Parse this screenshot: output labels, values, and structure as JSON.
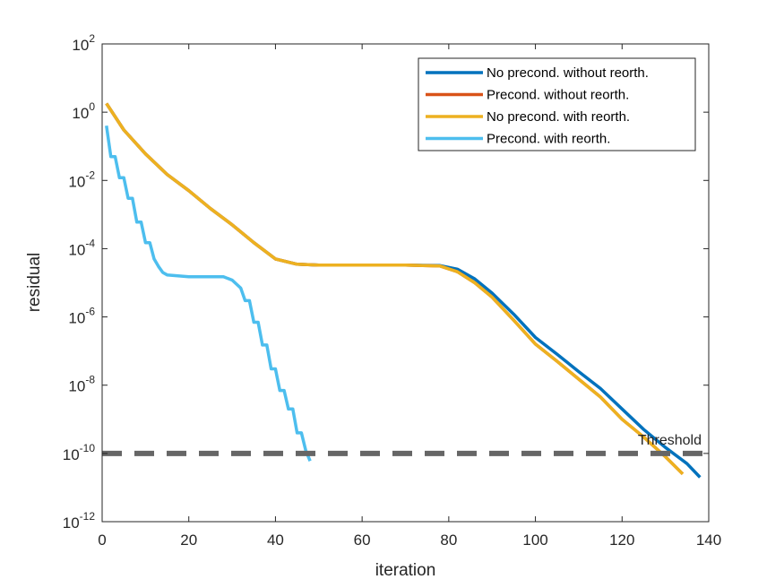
{
  "chart_data": {
    "type": "line",
    "title": "",
    "xlabel": "iteration",
    "ylabel": "residual",
    "xlim": [
      0,
      140
    ],
    "ylim": [
      1e-12,
      100
    ],
    "yscale": "log",
    "grid": false,
    "legend_position": "top-right",
    "xticks": [
      {
        "value": 0,
        "label": "0"
      },
      {
        "value": 20,
        "label": "20"
      },
      {
        "value": 40,
        "label": "40"
      },
      {
        "value": 60,
        "label": "60"
      },
      {
        "value": 80,
        "label": "80"
      },
      {
        "value": 100,
        "label": "100"
      },
      {
        "value": 120,
        "label": "120"
      },
      {
        "value": 140,
        "label": "140"
      }
    ],
    "yticks": [
      {
        "value": 1e-12,
        "base": "10",
        "exp": "-12"
      },
      {
        "value": 1e-10,
        "base": "10",
        "exp": "-10"
      },
      {
        "value": 1e-08,
        "base": "10",
        "exp": "-8"
      },
      {
        "value": 1e-06,
        "base": "10",
        "exp": "-6"
      },
      {
        "value": 0.0001,
        "base": "10",
        "exp": "-4"
      },
      {
        "value": 0.01,
        "base": "10",
        "exp": "-2"
      },
      {
        "value": 1,
        "base": "10",
        "exp": "0"
      },
      {
        "value": 100,
        "base": "10",
        "exp": "2"
      }
    ],
    "series": [
      {
        "name": "No precond. without reorth.",
        "color": "#0072BD",
        "points": [
          [
            1,
            1.8
          ],
          [
            5,
            0.3
          ],
          [
            10,
            0.06
          ],
          [
            15,
            0.015
          ],
          [
            20,
            0.005
          ],
          [
            25,
            0.0015
          ],
          [
            30,
            0.0005
          ],
          [
            35,
            0.00015
          ],
          [
            40,
            5e-05
          ],
          [
            45,
            3.5e-05
          ],
          [
            50,
            3.3e-05
          ],
          [
            60,
            3.3e-05
          ],
          [
            70,
            3.3e-05
          ],
          [
            78,
            3.2e-05
          ],
          [
            82,
            2.5e-05
          ],
          [
            86,
            1.3e-05
          ],
          [
            90,
            5e-06
          ],
          [
            95,
            1.2e-06
          ],
          [
            100,
            2.5e-07
          ],
          [
            105,
            8e-08
          ],
          [
            110,
            2.5e-08
          ],
          [
            115,
            8e-09
          ],
          [
            120,
            2e-09
          ],
          [
            125,
            5e-10
          ],
          [
            130,
            1.5e-10
          ],
          [
            135,
            5e-11
          ],
          [
            138,
            2e-11
          ]
        ]
      },
      {
        "name": "Precond. without reorth.",
        "color": "#D95319",
        "points": [
          [
            1,
            1.8
          ],
          [
            5,
            0.3
          ],
          [
            10,
            0.06
          ],
          [
            15,
            0.015
          ],
          [
            20,
            0.005
          ],
          [
            25,
            0.0015
          ],
          [
            30,
            0.0005
          ],
          [
            35,
            0.00015
          ],
          [
            40,
            5e-05
          ],
          [
            45,
            3.5e-05
          ],
          [
            50,
            3.3e-05
          ],
          [
            60,
            3.3e-05
          ],
          [
            70,
            3.3e-05
          ],
          [
            78,
            3.1e-05
          ],
          [
            82,
            2.1e-05
          ],
          [
            86,
            1e-05
          ],
          [
            90,
            3.8e-06
          ],
          [
            95,
            8e-07
          ],
          [
            100,
            1.6e-07
          ],
          [
            105,
            5e-08
          ],
          [
            110,
            1.5e-08
          ],
          [
            115,
            4.5e-09
          ],
          [
            120,
            1e-09
          ],
          [
            125,
            3e-10
          ],
          [
            130,
            8e-11
          ],
          [
            134,
            2.5e-11
          ]
        ]
      },
      {
        "name": "No precond. with reorth.",
        "color": "#EDB120",
        "points": [
          [
            1,
            1.8
          ],
          [
            5,
            0.3
          ],
          [
            10,
            0.06
          ],
          [
            15,
            0.015
          ],
          [
            20,
            0.005
          ],
          [
            25,
            0.0015
          ],
          [
            30,
            0.0005
          ],
          [
            35,
            0.00015
          ],
          [
            40,
            5e-05
          ],
          [
            45,
            3.5e-05
          ],
          [
            50,
            3.3e-05
          ],
          [
            60,
            3.3e-05
          ],
          [
            70,
            3.3e-05
          ],
          [
            78,
            3.1e-05
          ],
          [
            82,
            2.1e-05
          ],
          [
            86,
            1e-05
          ],
          [
            90,
            3.8e-06
          ],
          [
            95,
            8e-07
          ],
          [
            100,
            1.6e-07
          ],
          [
            105,
            5e-08
          ],
          [
            110,
            1.5e-08
          ],
          [
            115,
            4.5e-09
          ],
          [
            120,
            1e-09
          ],
          [
            125,
            3e-10
          ],
          [
            130,
            8e-11
          ],
          [
            134,
            2.5e-11
          ]
        ]
      },
      {
        "name": "Precond. with reorth.",
        "color": "#4DBEEE",
        "points": [
          [
            1,
            0.4
          ],
          [
            2,
            0.05
          ],
          [
            3,
            0.05
          ],
          [
            4,
            0.012
          ],
          [
            5,
            0.012
          ],
          [
            6,
            0.003
          ],
          [
            7,
            0.003
          ],
          [
            8,
            0.0006
          ],
          [
            9,
            0.0006
          ],
          [
            10,
            0.00015
          ],
          [
            11,
            0.00015
          ],
          [
            12,
            5e-05
          ],
          [
            13,
            3e-05
          ],
          [
            14,
            2e-05
          ],
          [
            15,
            1.7e-05
          ],
          [
            20,
            1.5e-05
          ],
          [
            25,
            1.5e-05
          ],
          [
            28,
            1.5e-05
          ],
          [
            30,
            1.2e-05
          ],
          [
            32,
            7e-06
          ],
          [
            33,
            3e-06
          ],
          [
            34,
            3e-06
          ],
          [
            35,
            7e-07
          ],
          [
            36,
            7e-07
          ],
          [
            37,
            1.5e-07
          ],
          [
            38,
            1.5e-07
          ],
          [
            39,
            3e-08
          ],
          [
            40,
            3e-08
          ],
          [
            41,
            7e-09
          ],
          [
            42,
            7e-09
          ],
          [
            43,
            2e-09
          ],
          [
            44,
            2e-09
          ],
          [
            45,
            4e-10
          ],
          [
            46,
            4e-10
          ],
          [
            47,
            1.2e-10
          ],
          [
            48,
            6e-11
          ]
        ]
      }
    ],
    "threshold": {
      "value": 1e-10,
      "label": "Threshold",
      "color": "#666666"
    }
  }
}
